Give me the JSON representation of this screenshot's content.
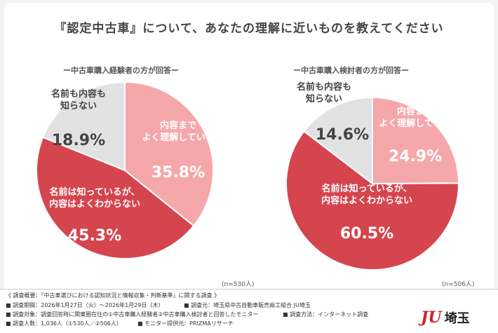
{
  "title": "『認定中古車』について、あなたの理解に近いものを教えてください",
  "footer": {
    "line1": "《 調査概要：「中古車選びにおける認知状況と情報収集・判断基準」に関する調査 》",
    "period_label": "■ 調査期間：2026年1月27日（火）〜2026年1月29日（木）",
    "source": "■ 調査元：埼玉県中古自動車販売商工組合 JU埼玉",
    "target": "■ 調査対象：調査回答時に関東圏在住の①中古車購入経験者②中古車購入検討者と回答したモニター",
    "method": "■ 調査方法：インターネット調査",
    "count": "■ 調査人数：1,036人（①530人／②506人）",
    "provider": "■ モニター提供元：PRIZMAリサーチ"
  },
  "logo": {
    "mark": "JU",
    "text": "埼玉"
  },
  "colors": {
    "light_pink": "#f5a7aa",
    "red": "#d5454e",
    "gray": "#e2e2e2"
  },
  "chart_data": [
    {
      "type": "pie",
      "subtitle": "ー中古車購入経験者の方が回答ー",
      "n": "(n=530人)",
      "slices": [
        {
          "label": "内容まで\nよく理解している",
          "value": 35.8,
          "value_text": "35.8%",
          "color": "#f5a7aa",
          "text_color": "#ffffff"
        },
        {
          "label": "名前は知っているが、\n内容はよくわからない",
          "value": 45.3,
          "value_text": "45.3%",
          "color": "#d5454e",
          "text_color": "#ffffff"
        },
        {
          "label": "名前も内容も\n知らない",
          "value": 18.9,
          "value_text": "18.9%",
          "color": "#e2e2e2",
          "text_color": "#444444"
        }
      ]
    },
    {
      "type": "pie",
      "subtitle": "ー中古車購入検討者の方が回答ー",
      "n": "(n=506人)",
      "slices": [
        {
          "label": "内容まで\nよく理解している",
          "value": 24.9,
          "value_text": "24.9%",
          "color": "#f5a7aa",
          "text_color": "#ffffff"
        },
        {
          "label": "名前は知っているが、\n内容はよくわからない",
          "value": 60.5,
          "value_text": "60.5%",
          "color": "#d5454e",
          "text_color": "#ffffff"
        },
        {
          "label": "名前も内容も\n知らない",
          "value": 14.6,
          "value_text": "14.6%",
          "color": "#e2e2e2",
          "text_color": "#444444"
        }
      ]
    }
  ]
}
